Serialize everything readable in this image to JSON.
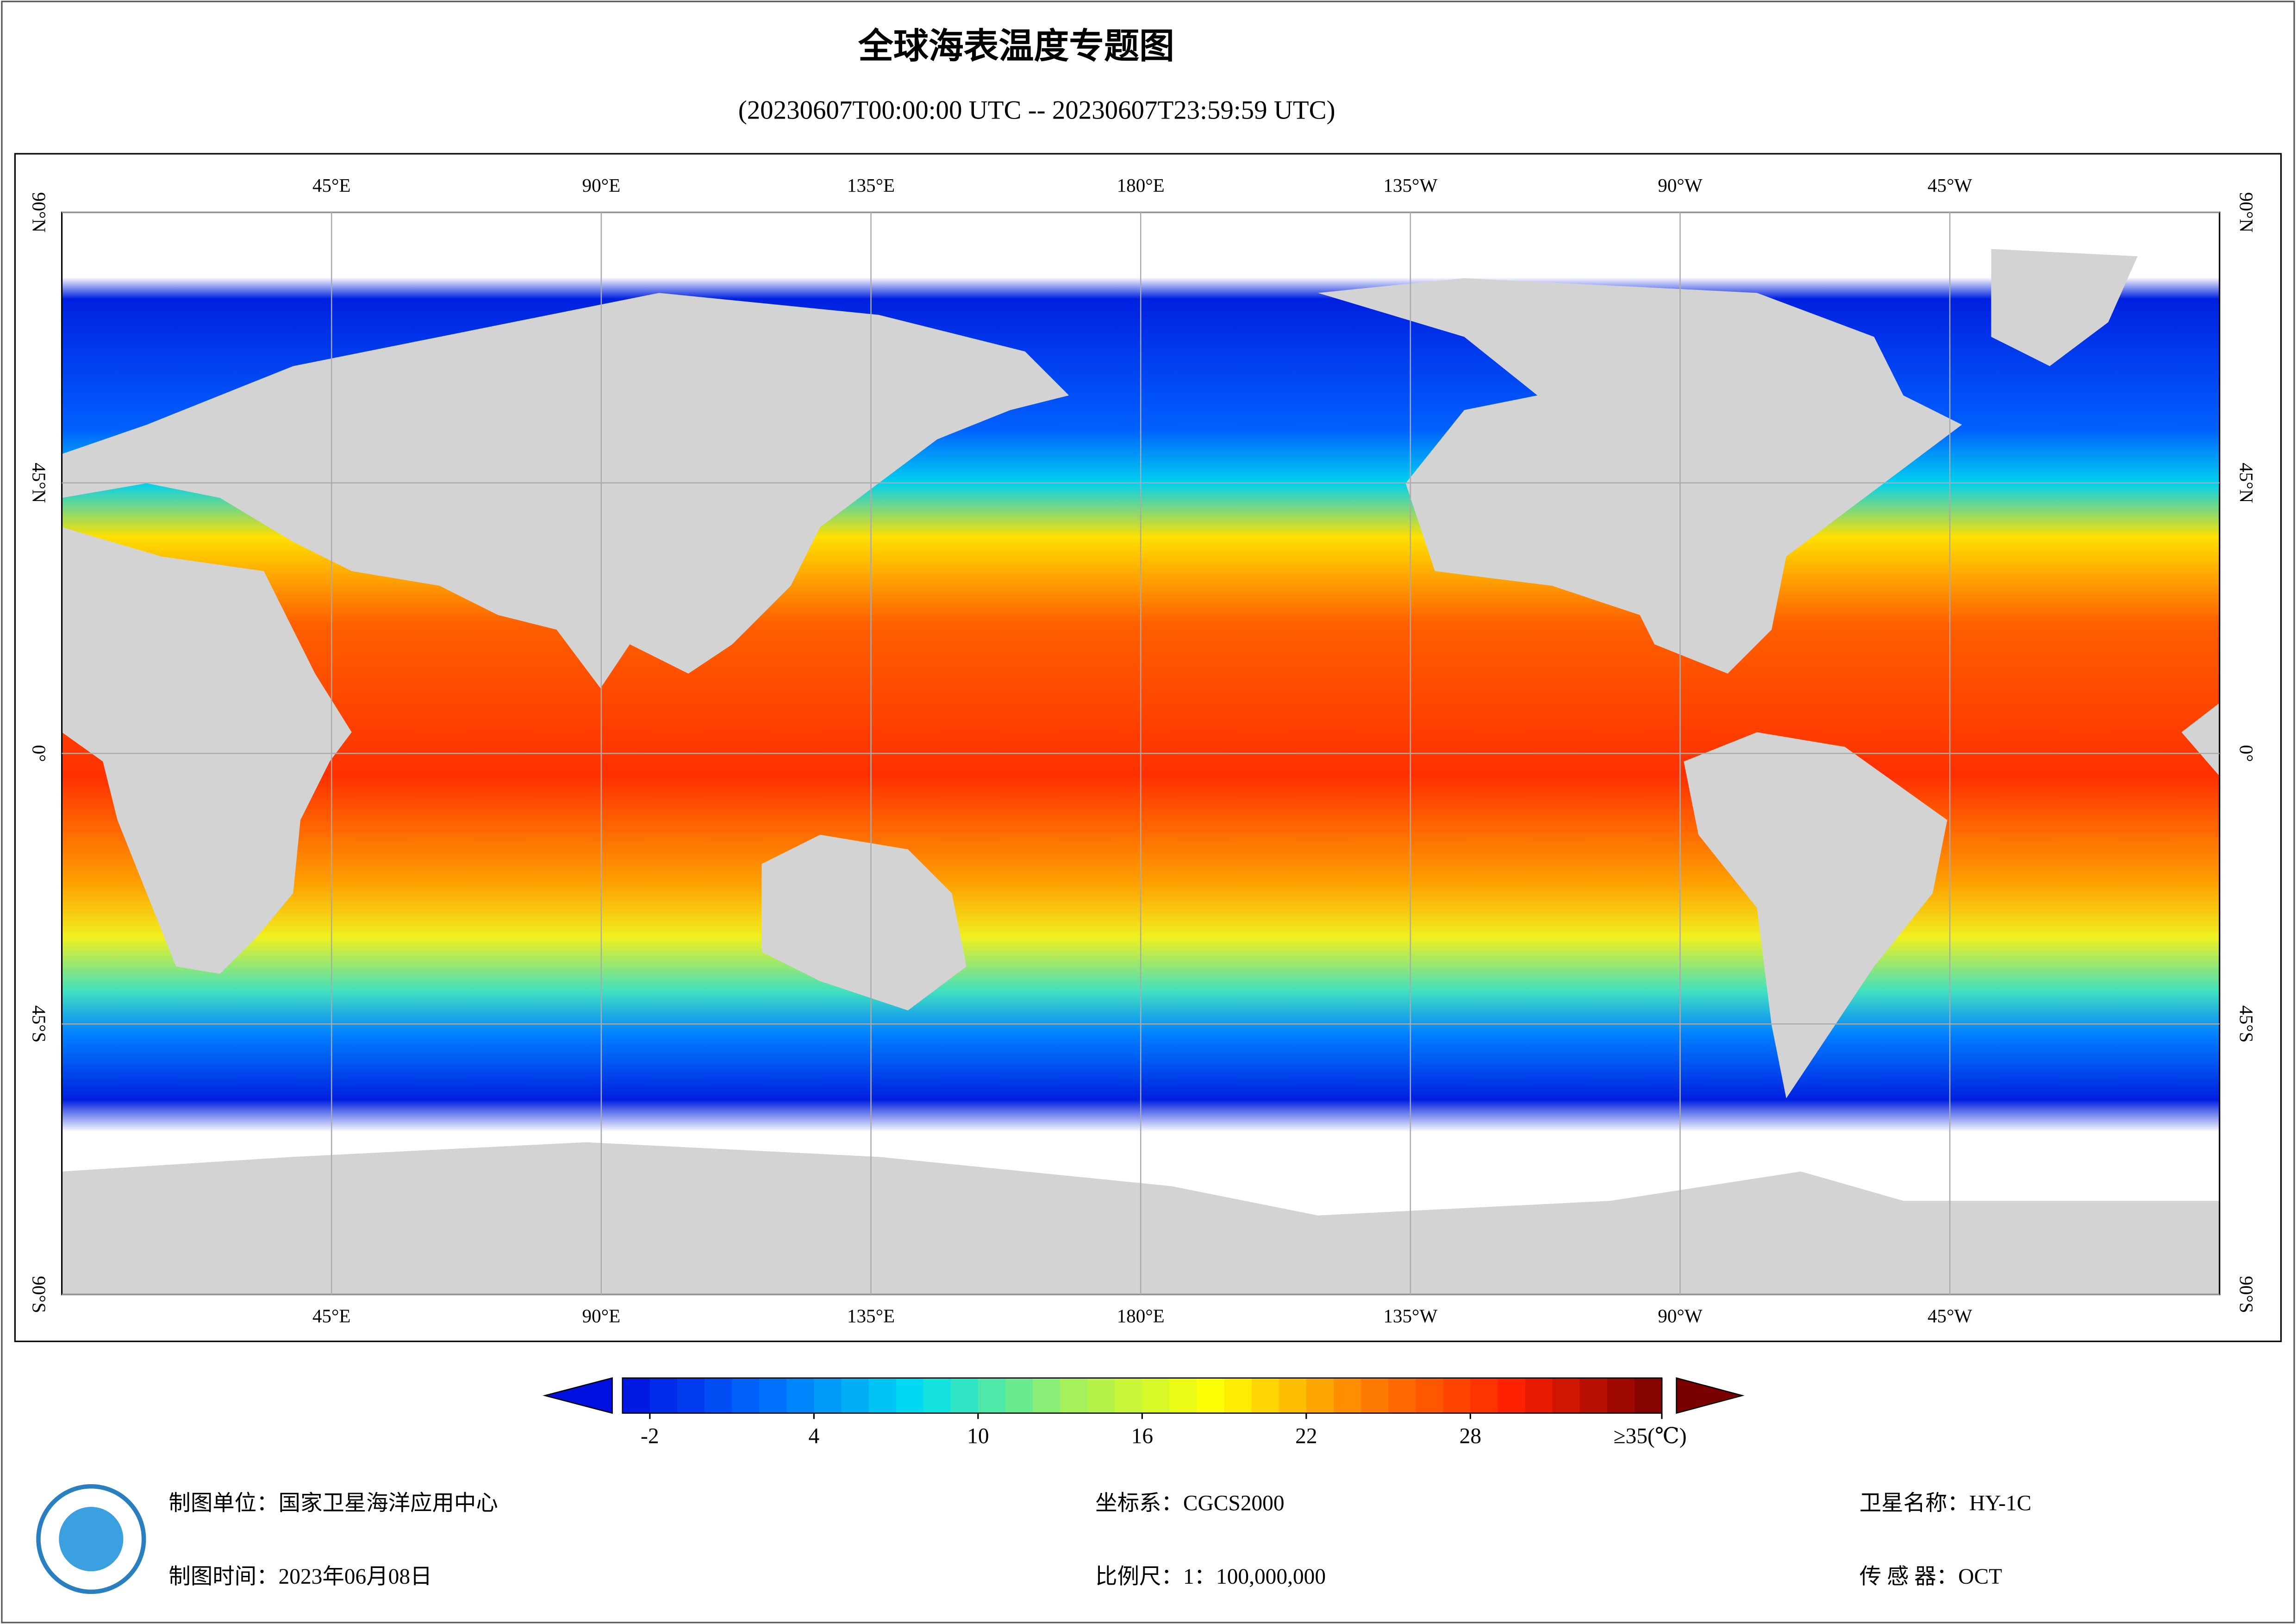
{
  "header": {
    "title": "全球海表温度专题图",
    "subtitle": "(20230607T00:00:00 UTC -- 20230607T23:59:59 UTC)"
  },
  "map": {
    "lon_lim": [
      0,
      360
    ],
    "lat_lim": [
      -90,
      90
    ],
    "grid": true,
    "lon_ticks": [
      {
        "value": 45,
        "label": "45°E"
      },
      {
        "value": 90,
        "label": "90°E"
      },
      {
        "value": 135,
        "label": "135°E"
      },
      {
        "value": 180,
        "label": "180°E"
      },
      {
        "value": 225,
        "label": "135°W"
      },
      {
        "value": 270,
        "label": "90°W"
      },
      {
        "value": 315,
        "label": "45°W"
      }
    ],
    "lat_ticks": [
      {
        "value": 90,
        "label": "90°N"
      },
      {
        "value": 45,
        "label": "45°N"
      },
      {
        "value": 0,
        "label": "0°"
      },
      {
        "value": -45,
        "label": "45°S"
      },
      {
        "value": -90,
        "label": "90°S"
      }
    ]
  },
  "colorbar": {
    "lim": [
      -3,
      35
    ],
    "colors": [
      "#0010e0",
      "#0070ff",
      "#00e0f0",
      "#a0f060",
      "#ffff00",
      "#ff8000",
      "#ff2000",
      "#7a0000"
    ],
    "ticks": [
      -2,
      4,
      10,
      16,
      22,
      28,
      {
        "value": 35,
        "label": "≥35(℃)"
      }
    ]
  },
  "footer": {
    "unit": "制图单位：国家卫星海洋应用中心",
    "time": "制图时间：2023年06月08日",
    "crs": "坐标系：CGCS2000",
    "scale": "比例尺：1：100,000,000",
    "satellite": "卫星名称：HY-1C",
    "sensor": "传 感 器：OCT"
  }
}
